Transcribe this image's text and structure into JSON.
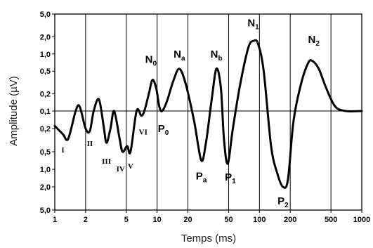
{
  "chart_data": {
    "type": "line",
    "xlabel": "Temps (ms)",
    "ylabel": "Amplitude (µV)",
    "x_scale": "log",
    "xlim": [
      1,
      1000
    ],
    "x_ticks": [
      "1",
      "2",
      "5",
      "10",
      "20",
      "50",
      "100",
      "200",
      "500",
      "1000"
    ],
    "y_ticks_upper": [
      "5,0",
      "2,0",
      "1,0",
      "0,5",
      "0,2",
      "0,1"
    ],
    "y_ticks_lower": [
      "0,2",
      "0,5",
      "1,0",
      "2,0",
      "5,0"
    ],
    "y_scale": "log, symmetric about 0,1 µV (positive up, negative down)",
    "grid": true,
    "series": [
      {
        "points": [
          {
            "x": 1.0,
            "y": -0.18
          },
          {
            "x": 1.2,
            "y": -0.25
          },
          {
            "x": 1.35,
            "y": -0.3
          },
          {
            "x": 1.6,
            "y": -0.1
          },
          {
            "x": 1.75,
            "y": 0.12
          },
          {
            "x": 2.0,
            "y": -0.2
          },
          {
            "x": 2.2,
            "y": -0.22
          },
          {
            "x": 2.4,
            "y": 0.1
          },
          {
            "x": 2.7,
            "y": 0.16
          },
          {
            "x": 3.0,
            "y": -0.18
          },
          {
            "x": 3.2,
            "y": -0.35
          },
          {
            "x": 3.5,
            "y": -0.2
          },
          {
            "x": 3.8,
            "y": 0.06
          },
          {
            "x": 4.3,
            "y": -0.3
          },
          {
            "x": 4.6,
            "y": -0.5
          },
          {
            "x": 5.1,
            "y": -0.4
          },
          {
            "x": 5.5,
            "y": -0.5
          },
          {
            "x": 6.3,
            "y": 0.06
          },
          {
            "x": 7.0,
            "y": -0.12
          },
          {
            "x": 7.5,
            "y": -0.05
          },
          {
            "x": 8.3,
            "y": 0.2
          },
          {
            "x": 9.0,
            "y": 0.35
          },
          {
            "x": 9.8,
            "y": 0.25
          },
          {
            "x": 10.5,
            "y": 0.12
          },
          {
            "x": 11.2,
            "y": 0.09
          },
          {
            "x": 12.5,
            "y": 0.15
          },
          {
            "x": 14.5,
            "y": 0.35
          },
          {
            "x": 16.5,
            "y": 0.55
          },
          {
            "x": 19.0,
            "y": 0.3
          },
          {
            "x": 23.0,
            "y": -0.15
          },
          {
            "x": 27.0,
            "y": -0.7
          },
          {
            "x": 30.0,
            "y": -0.35
          },
          {
            "x": 34.0,
            "y": 0.15
          },
          {
            "x": 38.0,
            "y": 0.55
          },
          {
            "x": 42.0,
            "y": 0.25
          },
          {
            "x": 45.0,
            "y": -0.3
          },
          {
            "x": 49.0,
            "y": -0.8
          },
          {
            "x": 55.0,
            "y": -0.2
          },
          {
            "x": 65.0,
            "y": 0.3
          },
          {
            "x": 78.0,
            "y": 1.3
          },
          {
            "x": 88.0,
            "y": 1.7
          },
          {
            "x": 97.0,
            "y": 1.5
          },
          {
            "x": 110.0,
            "y": 0.5
          },
          {
            "x": 130.0,
            "y": -0.4
          },
          {
            "x": 150.0,
            "y": -1.2
          },
          {
            "x": 170.0,
            "y": -2.0
          },
          {
            "x": 190.0,
            "y": -1.5
          },
          {
            "x": 215.0,
            "y": -0.15
          },
          {
            "x": 255.0,
            "y": 0.3
          },
          {
            "x": 300.0,
            "y": 0.7
          },
          {
            "x": 330.0,
            "y": 0.75
          },
          {
            "x": 380.0,
            "y": 0.55
          },
          {
            "x": 450.0,
            "y": 0.25
          },
          {
            "x": 550.0,
            "y": 0.12
          },
          {
            "x": 700.0,
            "y": 0.1
          },
          {
            "x": 1000.0,
            "y": 0.1
          }
        ]
      }
    ],
    "annotations": [
      {
        "base": "I",
        "sub": "",
        "x": 1.2,
        "y": -0.45
      },
      {
        "base": "II",
        "sub": "",
        "x": 2.2,
        "y": -0.35
      },
      {
        "base": "III",
        "sub": "",
        "x": 3.2,
        "y": -0.7
      },
      {
        "base": "IV",
        "sub": "",
        "x": 4.4,
        "y": -0.95
      },
      {
        "base": "V",
        "sub": "",
        "x": 5.5,
        "y": -0.85
      },
      {
        "base": "VI",
        "sub": "",
        "x": 7.3,
        "y": -0.22
      },
      {
        "base": "N",
        "sub": "0",
        "x": 8.7,
        "y": 0.8
      },
      {
        "base": "P",
        "sub": "0",
        "x": 11.5,
        "y": -0.2
      },
      {
        "base": "N",
        "sub": "a",
        "x": 16.5,
        "y": 1.0
      },
      {
        "base": "P",
        "sub": "a",
        "x": 27.0,
        "y": -1.3
      },
      {
        "base": "N",
        "sub": "b",
        "x": 38.0,
        "y": 1.0
      },
      {
        "base": "P",
        "sub": "1",
        "x": 52.0,
        "y": -1.35
      },
      {
        "base": "N",
        "sub": "1",
        "x": 87.0,
        "y": 3.5
      },
      {
        "base": "P",
        "sub": "2",
        "x": 170.0,
        "y": -3.5
      },
      {
        "base": "N",
        "sub": "2",
        "x": 340.0,
        "y": 1.8
      }
    ]
  }
}
